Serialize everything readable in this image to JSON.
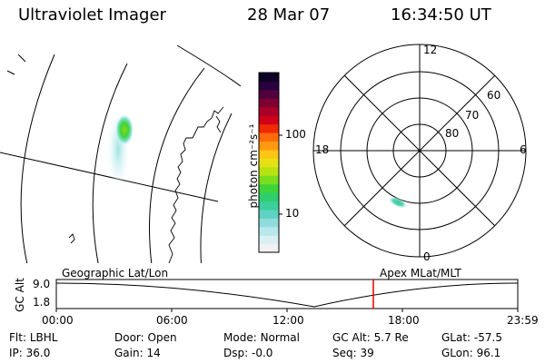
{
  "header": {
    "title": "Ultraviolet Imager",
    "date": "28 Mar 07",
    "time": "16:34:50 UT"
  },
  "left_panel": {
    "caption": "Geographic Lat/Lon"
  },
  "colorbar": {
    "unit_label": "photon cm⁻²s⁻¹",
    "ticks": [
      "100",
      "10"
    ],
    "colors": [
      "#f2f2f2",
      "#d9f1f3",
      "#b9e8ec",
      "#90dcdc",
      "#5fd3c1",
      "#3ccf9b",
      "#2fce6c",
      "#3fd43a",
      "#7ade1c",
      "#b7e310",
      "#e6e014",
      "#ffc515",
      "#ff9a10",
      "#ff6b0a",
      "#f02b00",
      "#d10018",
      "#aa0028",
      "#7d0030",
      "#52003c",
      "#2a0040",
      "#0c0025"
    ]
  },
  "polar": {
    "caption": "Apex MLat/MLT",
    "mlt_labels": {
      "top": "12",
      "left": "18",
      "right": "6",
      "bottom": "0"
    },
    "lat_labels": [
      "60",
      "70",
      "80"
    ]
  },
  "altitude_plot": {
    "ylabel": "GC Alt",
    "yticks": [
      "9.0",
      "1.8"
    ],
    "xticks": [
      "00:00",
      "06:00",
      "12:00",
      "18:00",
      "23:59"
    ],
    "marker_color": "#e00000"
  },
  "info": {
    "row1": [
      {
        "key": "Flt:",
        "value": "LBHL"
      },
      {
        "key": "Door:",
        "value": "Open"
      },
      {
        "key": "Mode:",
        "value": "Normal"
      },
      {
        "key": "GC Alt:",
        "value": "5.7 Re"
      },
      {
        "key": "GLat:",
        "value": "-57.5"
      }
    ],
    "row2": [
      {
        "key": "IP:",
        "value": "36.0"
      },
      {
        "key": "Gain:",
        "value": "14"
      },
      {
        "key": "Dsp:",
        "value": "-0.0"
      },
      {
        "key": "Seq:",
        "value": "39"
      },
      {
        "key": "GLon:",
        "value": "96.1"
      }
    ]
  }
}
